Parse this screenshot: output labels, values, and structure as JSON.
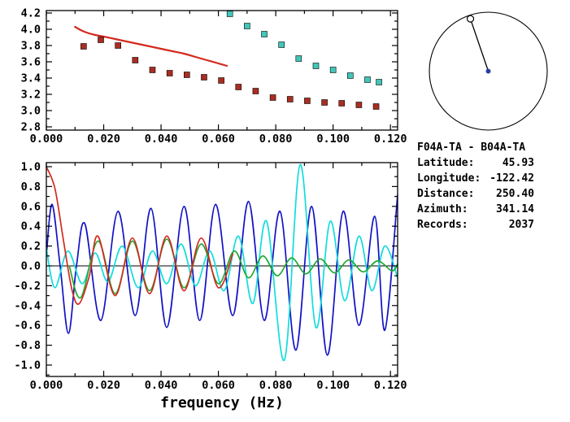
{
  "info": {
    "title": "F04A-TA - B04A-TA",
    "rows": [
      {
        "label": "Latitude:",
        "value": "45.93"
      },
      {
        "label": "Longitude:",
        "value": "-122.42"
      },
      {
        "label": "Distance:",
        "value": "250.40"
      },
      {
        "label": "Azimuth:",
        "value": "341.14"
      },
      {
        "label": "Records:",
        "value": "2037"
      }
    ]
  },
  "compass": {
    "azimuth_deg": 341.14,
    "circle_color": "#000000",
    "needle_color": "#000000",
    "end_marker_fill": "#ffffff",
    "center_dot_color": "#2a3f9f"
  },
  "chart_data": [
    {
      "id": "dispersion",
      "type": "scatter",
      "title": "",
      "xlabel": "",
      "ylabel": "",
      "xlim": [
        0,
        0.1225
      ],
      "ylim": [
        2.76,
        4.23
      ],
      "grid": false,
      "legend": "none",
      "xticks": {
        "values": [
          0,
          0.02,
          0.04,
          0.06,
          0.08,
          0.1,
          0.12
        ],
        "labels": [
          "0.000",
          "0.020",
          "0.040",
          "0.060",
          "0.080",
          "0.100",
          "0.120"
        ],
        "minor_step": 0.01
      },
      "yticks": {
        "values": [
          2.8,
          3.0,
          3.2,
          3.4,
          3.6,
          3.8,
          4.0,
          4.2
        ],
        "labels": [
          "2.8",
          "3.0",
          "3.2",
          "3.4",
          "3.6",
          "3.8",
          "4.0",
          "4.2"
        ],
        "minor_step": 0.1
      },
      "series": [
        {
          "name": "reference-dispersion-curve",
          "type": "line",
          "color": "#d42a1e",
          "points": [
            [
              0.01,
              4.03
            ],
            [
              0.012,
              3.99
            ],
            [
              0.014,
              3.96
            ],
            [
              0.017,
              3.93
            ],
            [
              0.02,
              3.91
            ],
            [
              0.024,
              3.88
            ],
            [
              0.028,
              3.85
            ],
            [
              0.032,
              3.82
            ],
            [
              0.036,
              3.79
            ],
            [
              0.04,
              3.76
            ],
            [
              0.044,
              3.73
            ],
            [
              0.048,
              3.7
            ],
            [
              0.052,
              3.66
            ],
            [
              0.056,
              3.62
            ],
            [
              0.06,
              3.58
            ],
            [
              0.063,
              3.55
            ]
          ]
        },
        {
          "name": "measured-velocity-squares",
          "type": "squares",
          "color": "#aa2d22",
          "points": [
            [
              0.013,
              3.79
            ],
            [
              0.019,
              3.87
            ],
            [
              0.025,
              3.8
            ],
            [
              0.031,
              3.62
            ],
            [
              0.037,
              3.5
            ],
            [
              0.043,
              3.46
            ],
            [
              0.049,
              3.44
            ],
            [
              0.055,
              3.41
            ],
            [
              0.061,
              3.37
            ],
            [
              0.067,
              3.29
            ],
            [
              0.073,
              3.24
            ],
            [
              0.079,
              3.16
            ],
            [
              0.085,
              3.14
            ],
            [
              0.091,
              3.12
            ],
            [
              0.097,
              3.1
            ],
            [
              0.103,
              3.09
            ],
            [
              0.109,
              3.07
            ],
            [
              0.115,
              3.05
            ]
          ]
        },
        {
          "name": "second-branch-velocity-squares",
          "type": "squares",
          "color": "#42c6ba",
          "points": [
            [
              0.064,
              4.19
            ],
            [
              0.07,
              4.04
            ],
            [
              0.076,
              3.94
            ],
            [
              0.082,
              3.81
            ],
            [
              0.088,
              3.64
            ],
            [
              0.094,
              3.55
            ],
            [
              0.1,
              3.5
            ],
            [
              0.106,
              3.43
            ],
            [
              0.112,
              3.38
            ],
            [
              0.116,
              3.35
            ]
          ]
        }
      ]
    },
    {
      "id": "spectra",
      "type": "line",
      "title": "",
      "xlabel": "frequency (Hz)",
      "ylabel": "",
      "xlim": [
        0,
        0.1225
      ],
      "ylim": [
        -1.115,
        1.041
      ],
      "grid": false,
      "legend": "none",
      "zero_line": true,
      "xticks": {
        "values": [
          0,
          0.02,
          0.04,
          0.06,
          0.08,
          0.1,
          0.12
        ],
        "labels": [
          "0.000",
          "0.020",
          "0.040",
          "0.060",
          "0.080",
          "0.100",
          "0.120"
        ],
        "minor_step": 0.01
      },
      "yticks": {
        "values": [
          -1.0,
          -0.8,
          -0.6,
          -0.4,
          -0.2,
          0,
          0.2,
          0.4,
          0.6,
          0.8,
          1.0
        ],
        "labels": [
          "-1.0",
          "-0.8",
          "-0.6",
          "-0.4",
          "-0.2",
          "0.0",
          "0.2",
          "0.4",
          "0.6",
          "0.8",
          "1.0"
        ],
        "minor_step": 0.1
      },
      "series": [
        {
          "name": "waveform-dark-blue",
          "type": "line",
          "smooth": true,
          "color": "#1212c4",
          "points": [
            [
              0.0,
              0.1
            ],
            [
              0.002,
              0.62
            ],
            [
              0.0048,
              0.0
            ],
            [
              0.0077,
              -0.68
            ],
            [
              0.0105,
              0.0
            ],
            [
              0.0135,
              0.42
            ],
            [
              0.019,
              -0.55
            ],
            [
              0.025,
              0.55
            ],
            [
              0.031,
              -0.5
            ],
            [
              0.0365,
              0.58
            ],
            [
              0.042,
              -0.62
            ],
            [
              0.048,
              0.6
            ],
            [
              0.0535,
              -0.55
            ],
            [
              0.059,
              0.62
            ],
            [
              0.065,
              -0.5
            ],
            [
              0.0705,
              0.65
            ],
            [
              0.076,
              -0.55
            ],
            [
              0.0815,
              0.55
            ],
            [
              0.087,
              -0.85
            ],
            [
              0.0925,
              0.6
            ],
            [
              0.098,
              -0.9
            ],
            [
              0.1035,
              0.55
            ],
            [
              0.109,
              -0.6
            ],
            [
              0.1145,
              0.5
            ],
            [
              0.118,
              -0.65
            ],
            [
              0.1225,
              0.72
            ]
          ]
        },
        {
          "name": "waveform-cyan",
          "type": "line",
          "smooth": true,
          "color": "#12dcdc",
          "points": [
            [
              0.0,
              0.18
            ],
            [
              0.003,
              -0.22
            ],
            [
              0.0075,
              0.15
            ],
            [
              0.0125,
              -0.18
            ],
            [
              0.017,
              0.13
            ],
            [
              0.0215,
              -0.16
            ],
            [
              0.0265,
              0.2
            ],
            [
              0.032,
              -0.22
            ],
            [
              0.037,
              0.15
            ],
            [
              0.042,
              -0.18
            ],
            [
              0.047,
              0.22
            ],
            [
              0.052,
              -0.2
            ],
            [
              0.057,
              0.15
            ],
            [
              0.062,
              -0.25
            ],
            [
              0.067,
              0.3
            ],
            [
              0.072,
              -0.38
            ],
            [
              0.0768,
              0.45
            ],
            [
              0.083,
              -0.95
            ],
            [
              0.0885,
              1.02
            ],
            [
              0.094,
              -0.62
            ],
            [
              0.099,
              0.45
            ],
            [
              0.104,
              -0.35
            ],
            [
              0.109,
              0.3
            ],
            [
              0.1135,
              -0.25
            ],
            [
              0.118,
              0.2
            ],
            [
              0.1225,
              -0.12
            ]
          ]
        },
        {
          "name": "waveform-green",
          "type": "line",
          "smooth": true,
          "color": "#22a833",
          "points": [
            [
              0.008,
              0.0
            ],
            [
              0.012,
              -0.32
            ],
            [
              0.018,
              0.25
            ],
            [
              0.024,
              -0.28
            ],
            [
              0.03,
              0.25
            ],
            [
              0.036,
              -0.25
            ],
            [
              0.042,
              0.27
            ],
            [
              0.048,
              -0.22
            ],
            [
              0.054,
              0.22
            ],
            [
              0.06,
              -0.18
            ],
            [
              0.0655,
              0.15
            ],
            [
              0.0705,
              -0.12
            ],
            [
              0.0755,
              0.1
            ],
            [
              0.0805,
              -0.1
            ],
            [
              0.0855,
              0.08
            ],
            [
              0.0905,
              -0.08
            ],
            [
              0.0955,
              0.07
            ],
            [
              0.1005,
              -0.07
            ],
            [
              0.1055,
              0.06
            ],
            [
              0.1105,
              -0.06
            ],
            [
              0.1155,
              0.05
            ],
            [
              0.1205,
              -0.05
            ],
            [
              0.1225,
              0.02
            ]
          ]
        },
        {
          "name": "waveform-red",
          "type": "line",
          "smooth": true,
          "color": "#d42a1e",
          "points": [
            [
              0.0,
              1.0
            ],
            [
              0.003,
              0.78
            ],
            [
              0.006,
              0.25
            ],
            [
              0.009,
              -0.25
            ],
            [
              0.0115,
              -0.38
            ],
            [
              0.015,
              -0.1
            ],
            [
              0.018,
              0.3
            ],
            [
              0.024,
              -0.3
            ],
            [
              0.03,
              0.28
            ],
            [
              0.036,
              -0.28
            ],
            [
              0.042,
              0.3
            ],
            [
              0.048,
              -0.25
            ],
            [
              0.054,
              0.28
            ],
            [
              0.06,
              -0.22
            ],
            [
              0.065,
              0.12
            ]
          ]
        }
      ]
    }
  ]
}
